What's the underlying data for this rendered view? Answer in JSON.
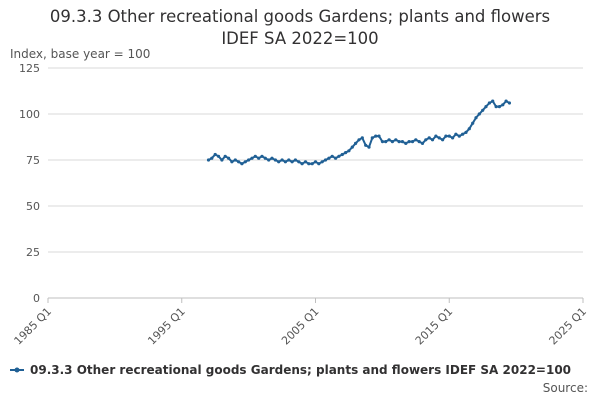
{
  "chart_data": {
    "type": "line",
    "title_line1": "09.3.3 Other recreational goods Gardens; plants and flowers",
    "title_line2": "IDEF SA 2022=100",
    "ylabel": "Index, base year = 100",
    "xlabel": "",
    "ylim": [
      0,
      125
    ],
    "yticks": [
      0,
      25,
      50,
      75,
      100,
      125
    ],
    "xticks": [
      "1985 Q1",
      "1995 Q1",
      "2005 Q1",
      "2015 Q1",
      "2025 Q1"
    ],
    "x_range": [
      1985.0,
      2025.0
    ],
    "grid": true,
    "legend_position": "bottom-left",
    "source_label": "Source:",
    "colors": {
      "series": "#206095",
      "grid": "#d9d9d9",
      "axis": "#bfbfbf"
    },
    "series": [
      {
        "name": "09.3.3 Other recreational goods Gardens; plants and flowers IDEF SA 2022=100",
        "start_year": 1997.0,
        "step": 0.25,
        "values": [
          75,
          76,
          78,
          77,
          75,
          77,
          76,
          74,
          75,
          74,
          73,
          74,
          75,
          76,
          77,
          76,
          77,
          76,
          75,
          76,
          75,
          74,
          75,
          74,
          75,
          74,
          75,
          74,
          73,
          74,
          73,
          73,
          74,
          73,
          74,
          75,
          76,
          77,
          76,
          77,
          78,
          79,
          80,
          82,
          84,
          86,
          87,
          83,
          82,
          87,
          88,
          88,
          85,
          85,
          86,
          85,
          86,
          85,
          85,
          84,
          85,
          85,
          86,
          85,
          84,
          86,
          87,
          86,
          88,
          87,
          86,
          88,
          88,
          87,
          89,
          88,
          89,
          90,
          92,
          95,
          98,
          100,
          102,
          104,
          106,
          107,
          104,
          104,
          105,
          107,
          106
        ]
      }
    ]
  }
}
